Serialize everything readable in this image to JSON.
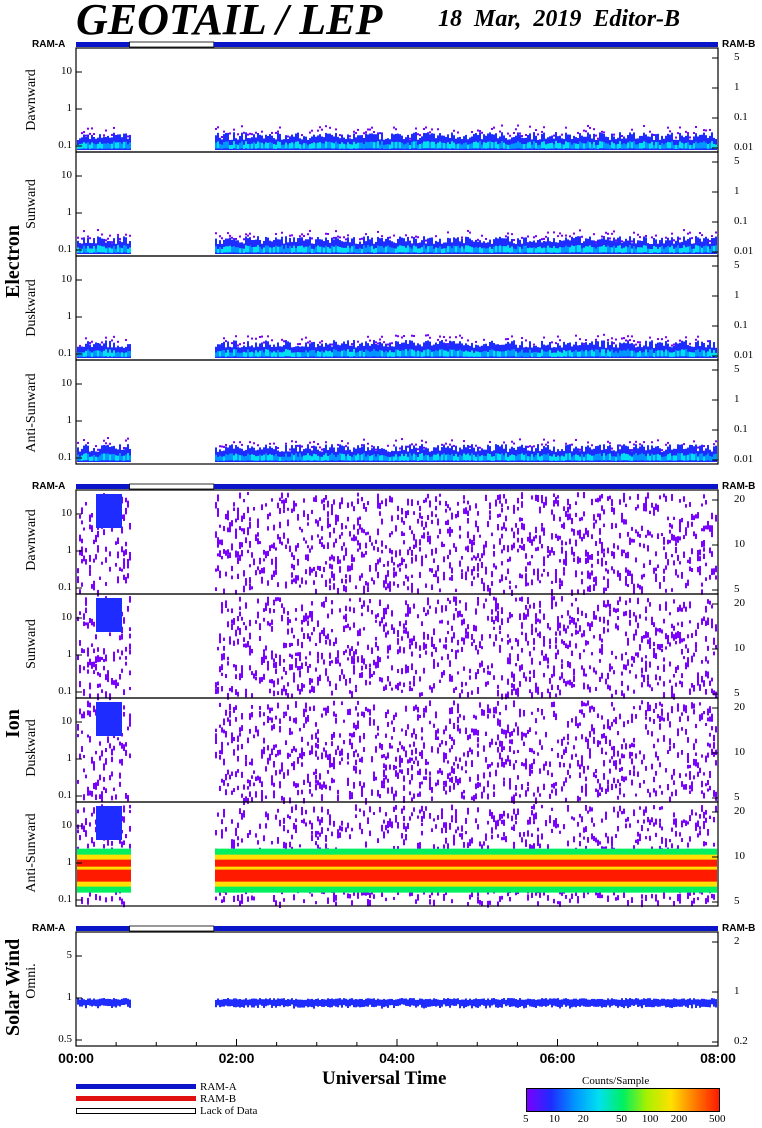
{
  "header": {
    "title": "GEOTAIL / LEP",
    "subtitle": "18 Mar, 2019   Editor-B"
  },
  "ram_labels": {
    "left": "RAM-A",
    "right": "RAM-B"
  },
  "groups": [
    {
      "name": "Electron"
    },
    {
      "name": "Ion"
    },
    {
      "name": "Solar Wind"
    }
  ],
  "panel_labels": {
    "e_dawn": "Dawnward",
    "e_sun": "Sunward",
    "e_dusk": "Duskward",
    "e_anti": "Anti-Sunward",
    "i_dawn": "Dawnward",
    "i_sun": "Sunward",
    "i_dusk": "Duskward",
    "i_anti": "Anti-Sunward",
    "sw_omni": "Omni."
  },
  "colors": {
    "ram_a": "#0a14c8",
    "ram_b": "#e01010",
    "lack": "#ffffff",
    "colorbar": [
      "#7a00ff",
      "#1e2cff",
      "#0096ff",
      "#00e0f0",
      "#00f060",
      "#a8f000",
      "#ffe000",
      "#ff7a00",
      "#ff1a00"
    ]
  },
  "legend": {
    "ram_a": "RAM-A",
    "ram_b": "RAM-B",
    "lack": "Lack of Data",
    "colorbar_title": "Counts/Sample",
    "colorbar_ticks": [
      "5",
      "10",
      "20",
      "50",
      "100",
      "200",
      "500"
    ]
  },
  "chart_data": [
    {
      "type": "heatmap",
      "title": "GEOTAIL / LEP  18 Mar, 2019  Editor-B",
      "xlabel": "Universal Time",
      "xlim": [
        "00:00",
        "08:00"
      ],
      "x_ticks": [
        "00:00",
        "02:00",
        "04:00",
        "06:00",
        "08:00"
      ],
      "data_gap": [
        "00:40",
        "01:43"
      ],
      "colorbar": {
        "label": "Counts/Sample",
        "ticks": [
          5,
          10,
          20,
          50,
          100,
          200,
          500
        ],
        "scale": "log"
      },
      "panels": [
        {
          "group": "Electron",
          "ylabel": "Dawnward",
          "yscale": "log",
          "left_ticks": [
            "10",
            "1",
            "0.1"
          ],
          "right_ticks": [
            "5",
            "1",
            "0.1",
            "0.01"
          ],
          "signal": "weak counts below 0.3"
        },
        {
          "group": "Electron",
          "ylabel": "Sunward",
          "yscale": "log",
          "left_ticks": [
            "10",
            "1",
            "0.1"
          ],
          "right_ticks": [
            "5",
            "1",
            "0.1",
            "0.01"
          ],
          "signal": "weak counts below 0.3"
        },
        {
          "group": "Electron",
          "ylabel": "Duskward",
          "yscale": "log",
          "left_ticks": [
            "10",
            "1",
            "0.1"
          ],
          "right_ticks": [
            "5",
            "1",
            "0.1",
            "0.01"
          ],
          "signal": "weak counts below 0.3"
        },
        {
          "group": "Electron",
          "ylabel": "Anti-Sunward",
          "yscale": "log",
          "left_ticks": [
            "10",
            "1",
            "0.1"
          ],
          "right_ticks": [
            "5",
            "1",
            "0.1",
            "0.01"
          ],
          "signal": "weak counts below 0.3"
        },
        {
          "group": "Ion",
          "ylabel": "Dawnward",
          "yscale": "log",
          "left_ticks": [
            "10",
            "1",
            "0.1"
          ],
          "right_ticks": [
            "20",
            "10",
            "5"
          ],
          "signal": "sparse noise"
        },
        {
          "group": "Ion",
          "ylabel": "Sunward",
          "yscale": "log",
          "left_ticks": [
            "10",
            "1",
            "0.1"
          ],
          "right_ticks": [
            "20",
            "10",
            "5"
          ],
          "signal": "sparse noise"
        },
        {
          "group": "Ion",
          "ylabel": "Duskward",
          "yscale": "log",
          "left_ticks": [
            "10",
            "1",
            "0.1"
          ],
          "right_ticks": [
            "20",
            "10",
            "5"
          ],
          "signal": "sparse noise"
        },
        {
          "group": "Ion",
          "ylabel": "Anti-Sunward",
          "yscale": "log",
          "left_ticks": [
            "10",
            "1",
            "0.1"
          ],
          "right_ticks": [
            "20",
            "10",
            "5"
          ],
          "signal": "solar wind beam near 1 keV, up to ~500 counts"
        },
        {
          "group": "Solar Wind",
          "ylabel": "Omni.",
          "yscale": "log",
          "left_ticks": [
            "5",
            "1",
            "0.5"
          ],
          "right_ticks": [
            "2",
            "1",
            "0.2"
          ],
          "signal": "narrow line near 0.8"
        }
      ]
    }
  ]
}
